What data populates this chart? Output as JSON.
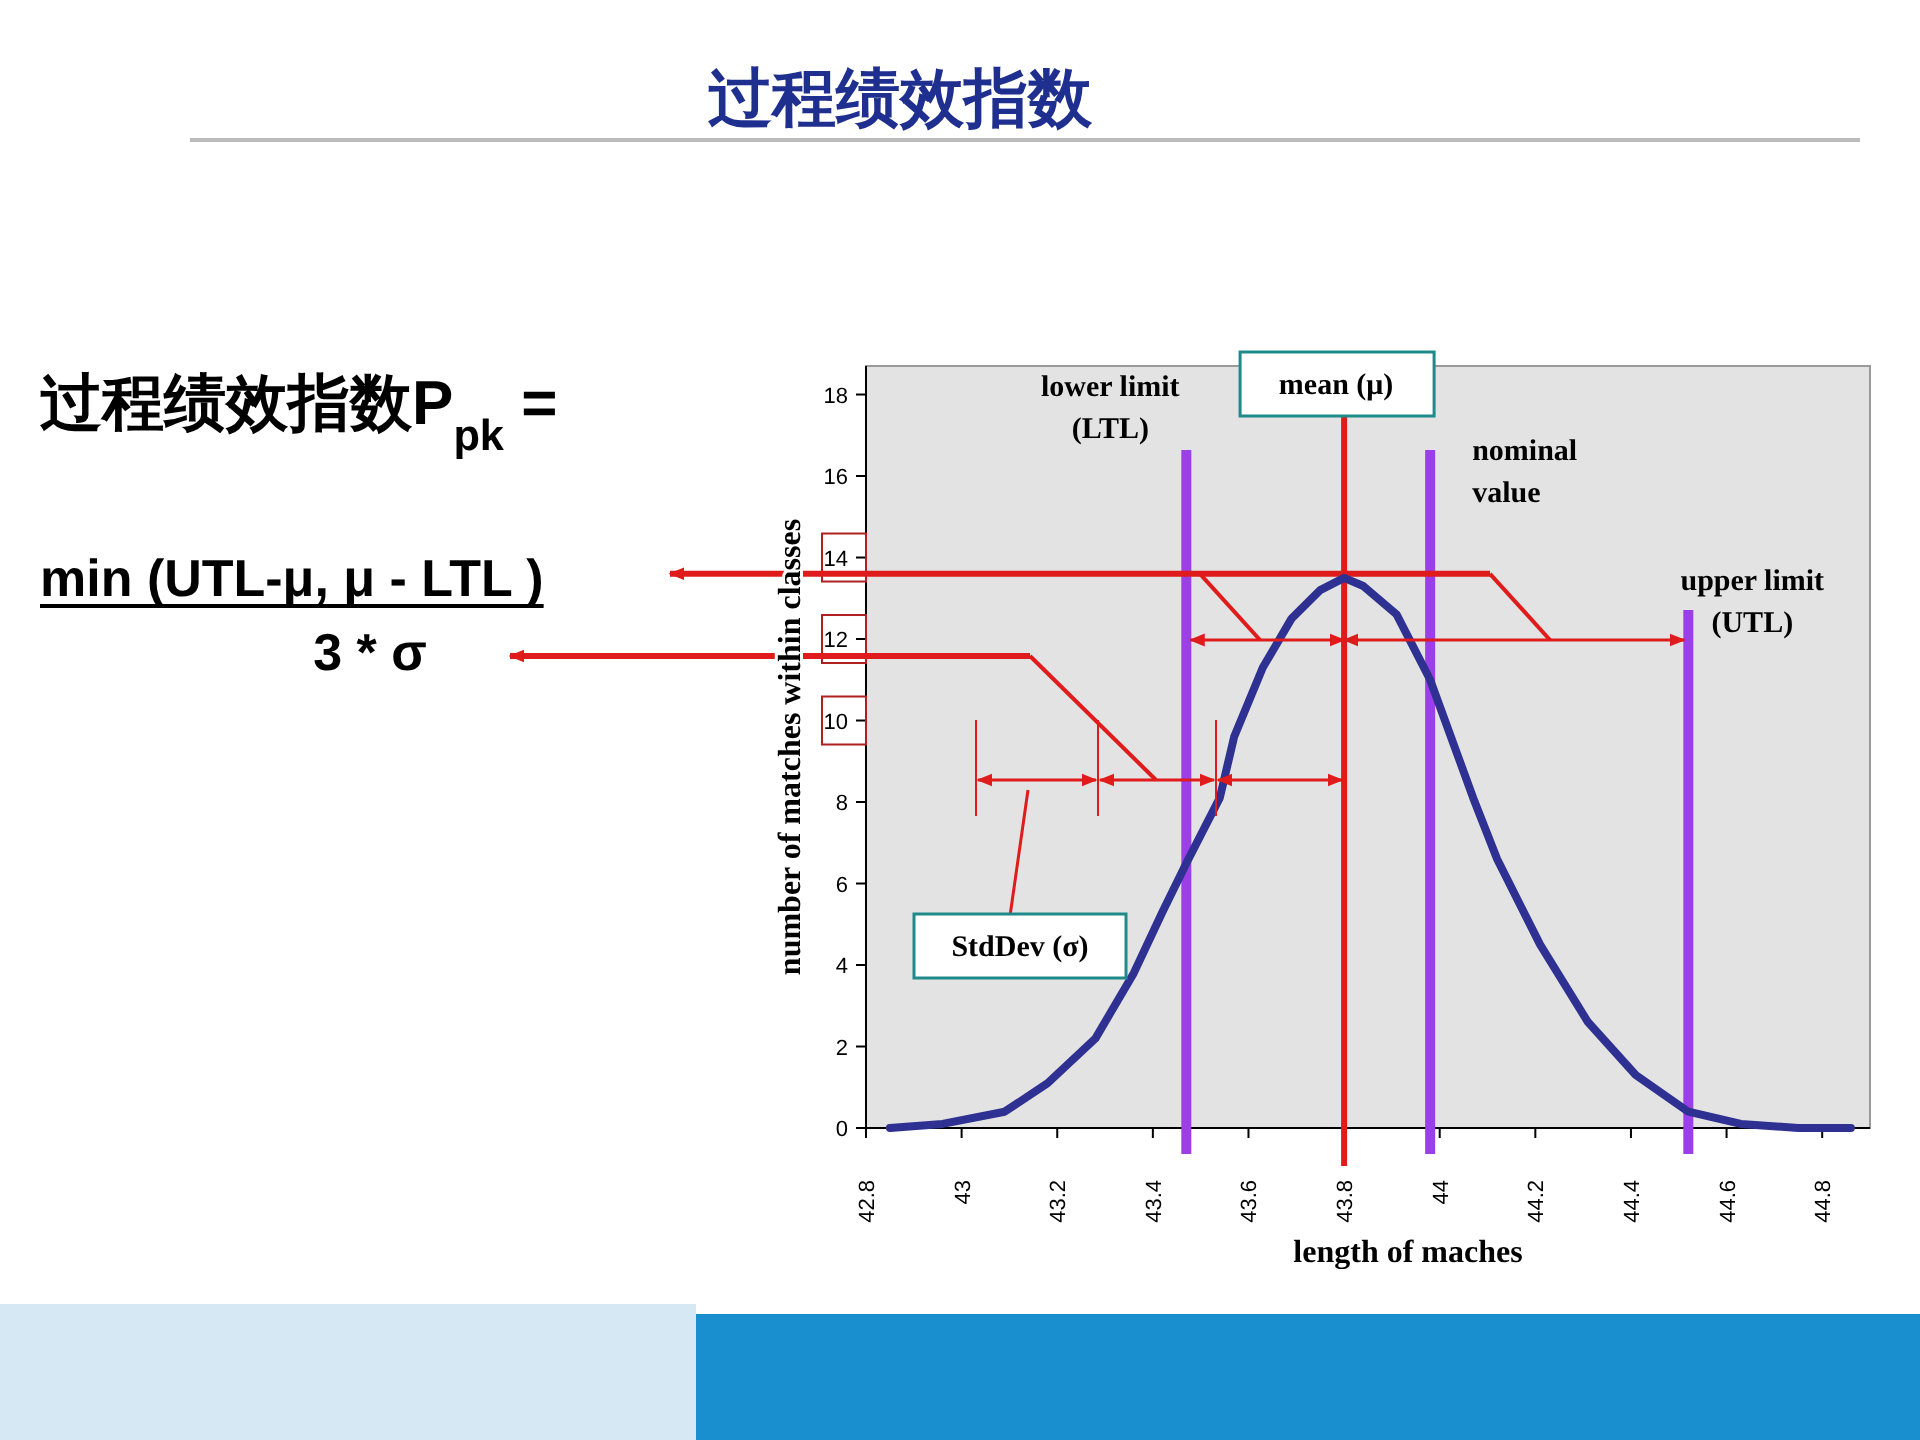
{
  "chart_data": {
    "type": "line",
    "title": "过程绩效指数",
    "xlabel": "length of maches",
    "ylabel": "number of matches within classes",
    "x": [
      42.85,
      42.96,
      43.09,
      43.18,
      43.28,
      43.36,
      43.42,
      43.47,
      43.54,
      43.57,
      43.63,
      43.69,
      43.75,
      43.8,
      43.84,
      43.91,
      43.98,
      44.07,
      44.12,
      44.21,
      44.31,
      44.41,
      44.52,
      44.63,
      44.75,
      44.86
    ],
    "series": [
      {
        "color": "#2e3192",
        "values": [
          0,
          0.1,
          0.4,
          1.1,
          2.2,
          3.8,
          5.3,
          6.5,
          8.1,
          9.6,
          11.3,
          12.5,
          13.2,
          13.5,
          13.3,
          12.6,
          11.0,
          8.1,
          6.6,
          4.5,
          2.6,
          1.3,
          0.4,
          0.1,
          0,
          0
        ]
      }
    ],
    "xlim": [
      42.8,
      44.9
    ],
    "ylim": [
      0,
      18.7
    ],
    "xticks": [
      42.8,
      43,
      43.2,
      43.4,
      43.6,
      43.8,
      44,
      44.2,
      44.4,
      44.6,
      44.8
    ],
    "yticks": [
      0,
      2,
      4,
      6,
      8,
      10,
      12,
      14,
      16,
      18
    ],
    "ref_lines": [
      {
        "axis": "x",
        "value": 43.47,
        "label": "lower limit (LTL)",
        "color": "#9b3fe6"
      },
      {
        "axis": "x",
        "value": 43.8,
        "label": "mean (μ)",
        "color": "#e01b1b"
      },
      {
        "axis": "x",
        "value": 43.98,
        "label": "nominal value",
        "color": "#9b3fe6"
      },
      {
        "axis": "x",
        "value": 44.52,
        "label": "upper limit (UTL)",
        "color": "#9b3fe6"
      },
      {
        "axis": "y",
        "value": 13.6,
        "color": "#e01b1b"
      }
    ],
    "annotations": [
      "过程绩效指数P$_{pk}$ =",
      "min (UTL-μ, μ - LTL )",
      "3 * σ",
      "StdDev (σ)"
    ],
    "grid": false,
    "marker": "none",
    "line_style": "solid"
  }
}
